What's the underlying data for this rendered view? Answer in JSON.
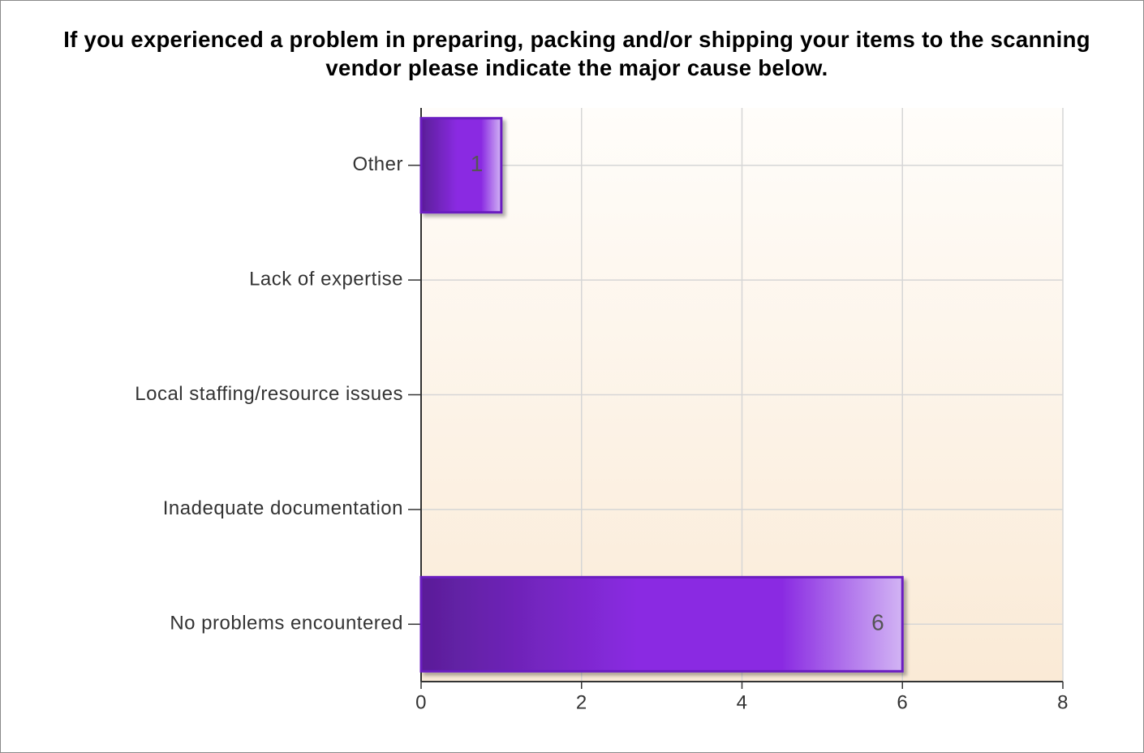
{
  "chart_data": {
    "type": "hbar",
    "title": "If you experienced a problem in preparing, packing and/or shipping your items to the scanning vendor please indicate the major cause below.",
    "categories": [
      "Other",
      "Lack of expertise",
      "Local staffing/resource issues",
      "Inadequate documentation",
      "No problems encountered"
    ],
    "values": [
      1,
      0,
      0,
      0,
      6
    ],
    "color": "#8a2be2",
    "xlim": [
      0,
      8
    ],
    "xticks": [
      0,
      2,
      4,
      6,
      8
    ],
    "grid": true
  }
}
